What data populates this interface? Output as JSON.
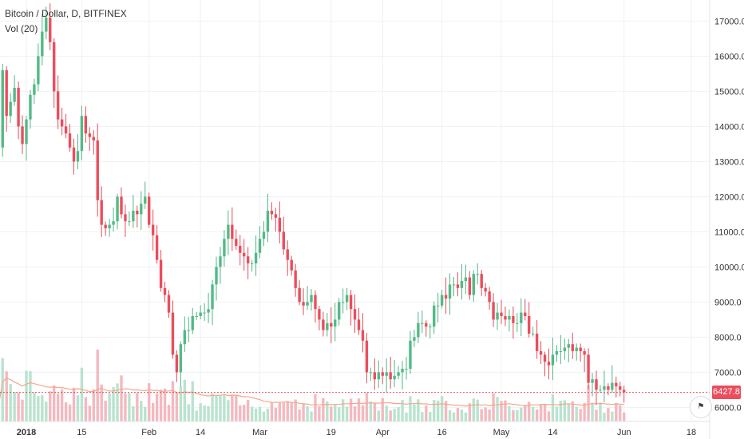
{
  "legend": {
    "symbol": "Bitcoin / Dollar, D, BITFINEX",
    "volume": "Vol (20)"
  },
  "last_price_label": "6427.8",
  "colors": {
    "up": "#53b987",
    "down": "#eb4d5c",
    "vol_up": "#b9e3cf",
    "vol_down": "#f4b9bf",
    "vol_ma": "#f4a78c",
    "grid": "#eef1f4",
    "axis_text": "#333333",
    "price_line": "#eb4d5c"
  },
  "corner_icon": "tradingview-logo-icon",
  "chart_data": {
    "type": "candlestick",
    "y_axis_ticks": [
      "6000.0",
      "7000.0",
      "8000.0",
      "9000.0",
      "10000.0",
      "11000.0",
      "12000.0",
      "13000.0",
      "14000.0",
      "15000.0",
      "16000.0",
      "17000.0"
    ],
    "ylim": [
      5600,
      17600
    ],
    "x_axis_ticks": [
      {
        "label": "2018",
        "date": "2018-01-01"
      },
      {
        "label": "15",
        "date": "2018-01-15"
      },
      {
        "label": "Feb",
        "date": "2018-02-01"
      },
      {
        "label": "14",
        "date": "2018-02-14"
      },
      {
        "label": "Mar",
        "date": "2018-03-01"
      },
      {
        "label": "19",
        "date": "2018-03-19"
      },
      {
        "label": "Apr",
        "date": "2018-04-01"
      },
      {
        "label": "16",
        "date": "2018-04-16"
      },
      {
        "label": "May",
        "date": "2018-05-01"
      },
      {
        "label": "14",
        "date": "2018-05-14"
      },
      {
        "label": "Jun",
        "date": "2018-06-01"
      },
      {
        "label": "18",
        "date": "2018-06-18"
      }
    ],
    "last_price": 6427.8,
    "close": [
      13400,
      15600,
      14300,
      14700,
      15100,
      14000,
      13500,
      14200,
      14900,
      15200,
      16000,
      16700,
      17100,
      16400,
      15000,
      14200,
      14000,
      13800,
      13400,
      13000,
      13300,
      14300,
      13800,
      13700,
      13600,
      11900,
      11200,
      11100,
      11200,
      11300,
      12000,
      11500,
      11300,
      11300,
      11600,
      11500,
      11800,
      12000,
      11200,
      10900,
      10200,
      9400,
      9200,
      8700,
      7500,
      7000,
      7800,
      8200,
      8200,
      8600,
      8600,
      8700,
      8700,
      8800,
      9500,
      10000,
      10300,
      10800,
      11200,
      10800,
      10600,
      10400,
      10300,
      10100,
      10100,
      10400,
      10800,
      11000,
      11600,
      11500,
      11400,
      11000,
      10500,
      10200,
      9900,
      9400,
      9000,
      8900,
      9000,
      9200,
      8800,
      8500,
      8200,
      8400,
      8300,
      8500,
      9000,
      9000,
      9200,
      8800,
      8500,
      8200,
      7900,
      7000,
      7000,
      6800,
      7000,
      6900,
      7000,
      6800,
      6900,
      7000,
      7100,
      7100,
      7900,
      8000,
      8400,
      8400,
      8300,
      8300,
      8900,
      8900,
      9200,
      9100,
      9500,
      9500,
      9400,
      9600,
      9700,
      9200,
      9800,
      9800,
      9400,
      9300,
      9000,
      8500,
      8700,
      8600,
      8500,
      8600,
      8400,
      8400,
      8700,
      8600,
      8100,
      8100,
      7600,
      7500,
      7300,
      7200,
      7500,
      7600,
      7600,
      7700,
      7800,
      7600,
      7700,
      7600,
      7500,
      6700,
      6800,
      6500,
      6500,
      6600,
      6500,
      6700,
      6600,
      6500,
      6428
    ],
    "volume_mode": "relative"
  }
}
